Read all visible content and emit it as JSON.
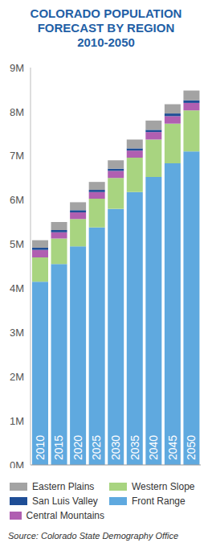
{
  "chart_data": {
    "type": "bar",
    "title": "COLORADO POPULATION FORECAST BY REGION",
    "subtitle": "2010-2050",
    "categories": [
      "2010",
      "2015",
      "2020",
      "2025",
      "2030",
      "2035",
      "2040",
      "2045",
      "2050"
    ],
    "series": [
      {
        "name": "Front Range",
        "color": "#5fa9df",
        "values": [
          4.15,
          4.55,
          4.95,
          5.38,
          5.8,
          6.18,
          6.52,
          6.83,
          7.1
        ]
      },
      {
        "name": "Western Slope",
        "color": "#a8d480",
        "values": [
          0.55,
          0.58,
          0.62,
          0.65,
          0.7,
          0.78,
          0.85,
          0.9,
          0.93
        ]
      },
      {
        "name": "Central Mountains",
        "color": "#b05fb1",
        "values": [
          0.17,
          0.14,
          0.15,
          0.15,
          0.16,
          0.16,
          0.17,
          0.17,
          0.17
        ]
      },
      {
        "name": "San Luis Valley",
        "color": "#1f4e96",
        "values": [
          0.05,
          0.05,
          0.05,
          0.05,
          0.05,
          0.05,
          0.05,
          0.06,
          0.06
        ]
      },
      {
        "name": "Eastern Plains",
        "color": "#a3a3a3",
        "values": [
          0.17,
          0.18,
          0.18,
          0.18,
          0.19,
          0.2,
          0.21,
          0.21,
          0.22
        ]
      }
    ],
    "ylim": [
      0,
      9
    ],
    "yticks": [
      {
        "value": 0,
        "label": "0M"
      },
      {
        "value": 1,
        "label": "1M"
      },
      {
        "value": 2,
        "label": "2M"
      },
      {
        "value": 3,
        "label": "3M"
      },
      {
        "value": 4,
        "label": "4M"
      },
      {
        "value": 5,
        "label": "5M"
      },
      {
        "value": 6,
        "label": "6M"
      },
      {
        "value": 7,
        "label": "7M"
      },
      {
        "value": 8,
        "label": "8M"
      },
      {
        "value": 9,
        "label": "9M"
      }
    ],
    "stacked": true,
    "grid": false,
    "source": "Source: Colorado State Demography Office"
  }
}
